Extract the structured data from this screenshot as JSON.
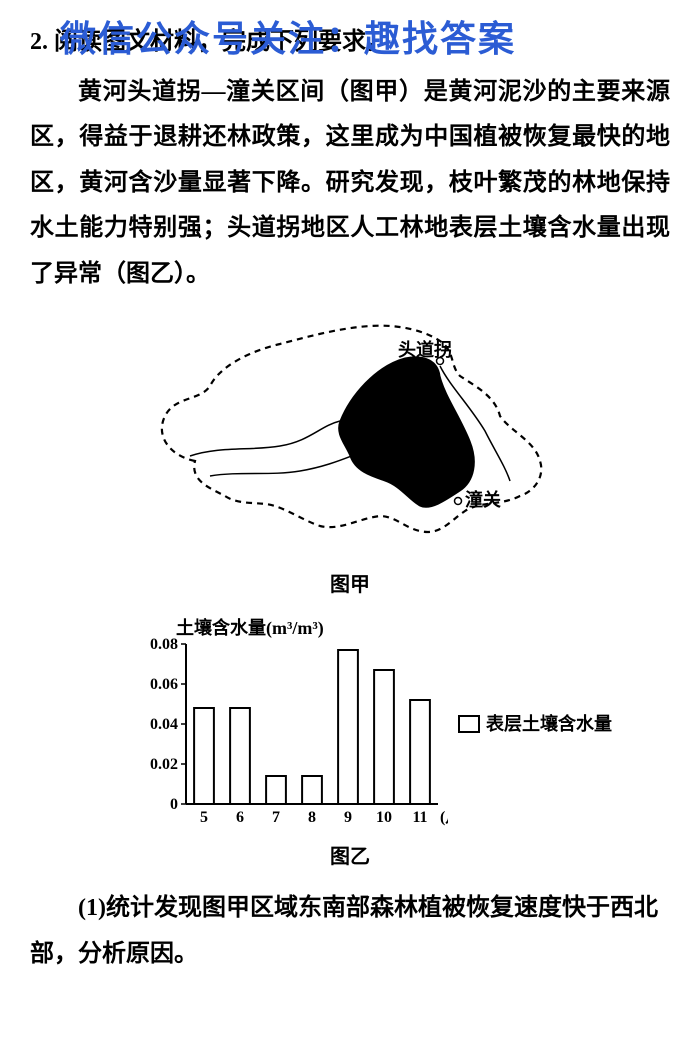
{
  "question_number": "2.",
  "watermark": "微信公众号关注：趣找答案",
  "intro": "阅读图文材料，完成下列要求。",
  "passage": "黄河头道拐—潼关区间（图甲）是黄河泥沙的主要来源区，得益于退耕还林政策，这里成为中国植被恢复最快的地区，黄河含沙量显著下降。研究发现，枝叶繁茂的林地保持水土能力特别强；头道拐地区人工林地表层土壤含水量出现了异常（图乙）。",
  "map": {
    "caption": "图甲",
    "label1": "头道拐",
    "label2": "潼关",
    "outline_color": "#000000",
    "fill_color": "#000000",
    "dash_pattern": "6,5"
  },
  "chart": {
    "caption": "图乙",
    "type": "bar",
    "y_label": "土壤含水量(m³/m³)",
    "x_label": "(月)",
    "legend_label": "表层土壤含水量",
    "categories": [
      "5",
      "6",
      "7",
      "8",
      "9",
      "10",
      "11"
    ],
    "values": [
      0.048,
      0.048,
      0.014,
      0.014,
      0.077,
      0.067,
      0.052
    ],
    "ylim": [
      0,
      0.08
    ],
    "yticks": [
      0,
      0.02,
      0.04,
      0.06,
      0.08
    ],
    "bar_fill": "#ffffff",
    "bar_stroke": "#000000",
    "axis_color": "#000000",
    "tick_fontsize": 16,
    "label_fontsize": 18,
    "bar_width_ratio": 0.55
  },
  "subq1": "(1)统计发现图甲区域东南部森林植被恢复速度快于西北部，分析原因。"
}
